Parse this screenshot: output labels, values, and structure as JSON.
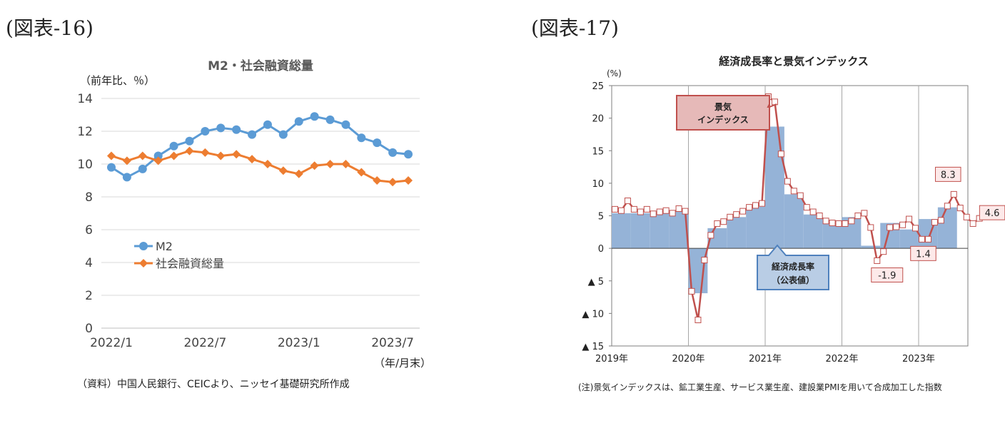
{
  "left": {
    "figure_label": "(図表-16)",
    "source_note": "（資料）中国人民銀行、CEICより、ニッセイ基礎研究所作成",
    "chart_data": {
      "type": "line",
      "title": "M2・社会融資総量",
      "ylabel": "（前年比、％）",
      "xlabel": "（年/月末）",
      "ylim": [
        0,
        14
      ],
      "yticks": [
        "0",
        "2",
        "4",
        "6",
        "8",
        "10",
        "12",
        "14"
      ],
      "xtick_labels": [
        {
          "label": "2022/1",
          "index": 0
        },
        {
          "label": "2022/7",
          "index": 6
        },
        {
          "label": "2023/1",
          "index": 12
        },
        {
          "label": "2023/7",
          "index": 18
        }
      ],
      "grid": true,
      "legend": "inside-left",
      "series": [
        {
          "name": "M2",
          "color": "#5b9bd5",
          "marker": "circle",
          "values": [
            9.8,
            9.2,
            9.7,
            10.5,
            11.1,
            11.4,
            12.0,
            12.2,
            12.1,
            11.8,
            12.4,
            11.8,
            12.6,
            12.9,
            12.7,
            12.4,
            11.6,
            11.3,
            10.7,
            10.6
          ]
        },
        {
          "name": "社会融資総量",
          "color": "#ed7d31",
          "marker": "diamond",
          "values": [
            10.5,
            10.2,
            10.5,
            10.2,
            10.5,
            10.8,
            10.7,
            10.5,
            10.6,
            10.3,
            10.0,
            9.6,
            9.4,
            9.9,
            10.0,
            10.0,
            9.5,
            9.0,
            8.9,
            9.0
          ]
        }
      ]
    }
  },
  "right": {
    "figure_label": "(図表-17)",
    "source_note": "(注)景気インデックスは、鉱工業生産、サービス業生産、建設業PMIを用いて合成加工した指数",
    "chart_data": {
      "type": "bar+line",
      "title": "経済成長率と景気インデックス",
      "ylabel": "(%)",
      "ylim": [
        -15,
        25
      ],
      "yticks": [
        "25",
        "20",
        "15",
        "10",
        "5",
        "0",
        "▲ 5",
        "▲ 10",
        "▲ 15"
      ],
      "xtick_labels": [
        "2019年",
        "2020年",
        "2021年",
        "2022年",
        "2023年"
      ],
      "grid": "vertical year lines",
      "bar_series": {
        "name": "経済成長率（公表値）",
        "color": "#95b3d7",
        "quarters": [
          "2019Q1",
          "2019Q2",
          "2019Q3",
          "2019Q4",
          "2020Q1",
          "2020Q2",
          "2020Q3",
          "2020Q4",
          "2021Q1",
          "2021Q2",
          "2021Q3",
          "2021Q4",
          "2022Q1",
          "2022Q2",
          "2022Q3",
          "2022Q4",
          "2023Q1",
          "2023Q2"
        ],
        "values": [
          5.4,
          5.4,
          5.4,
          5.8,
          -6.9,
          3.1,
          4.8,
          6.4,
          18.7,
          8.3,
          5.2,
          4.3,
          4.8,
          0.4,
          3.9,
          2.9,
          4.5,
          6.3
        ]
      },
      "line_series": {
        "name": "景気インデックス",
        "color": "#c0504d",
        "values": [
          6.0,
          5.8,
          7.3,
          6.0,
          5.6,
          6.0,
          5.3,
          5.6,
          5.8,
          5.4,
          6.1,
          5.7,
          -6.6,
          -11.0,
          -1.8,
          2.0,
          3.8,
          4.1,
          4.8,
          5.2,
          5.7,
          6.3,
          6.6,
          6.9,
          23.3,
          22.5,
          14.5,
          10.3,
          8.8,
          8.1,
          6.3,
          5.6,
          5.0,
          4.2,
          3.9,
          3.8,
          3.8,
          4.2,
          5.0,
          5.4,
          3.2,
          -1.9,
          -0.5,
          3.2,
          3.3,
          3.6,
          4.5,
          3.1,
          1.4,
          1.4,
          4.0,
          4.3,
          6.5,
          8.3,
          6.2,
          4.8,
          3.8,
          4.6
        ]
      },
      "callouts": [
        {
          "text": "景気\nインデックス"
        },
        {
          "text": "経済成長率\n（公表値）"
        }
      ],
      "data_labels": [
        {
          "text": "8.3",
          "index": 53,
          "value": 8.3
        },
        {
          "text": "4.6",
          "index": 57,
          "value": 4.6
        },
        {
          "text": "-1.9",
          "index": 41,
          "value": -1.9
        },
        {
          "text": "1.4",
          "index": 48,
          "value": 1.4
        }
      ]
    }
  }
}
